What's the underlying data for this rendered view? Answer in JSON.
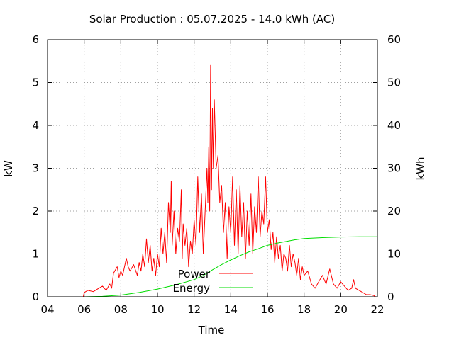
{
  "chart_data": {
    "type": "line",
    "title": "Solar Production : 05.07.2025 - 14.0 kWh (AC)",
    "xlabel": "Time",
    "ylabel": "kW",
    "y2label": "kWh",
    "xlim": [
      4,
      22
    ],
    "ylim": [
      0,
      6
    ],
    "y2lim": [
      0,
      60
    ],
    "x_ticks": [
      "04",
      "06",
      "08",
      "10",
      "12",
      "14",
      "16",
      "18",
      "20",
      "22"
    ],
    "y_ticks": [
      "0",
      "1",
      "2",
      "3",
      "4",
      "5",
      "6"
    ],
    "y2_ticks": [
      "0",
      "10",
      "20",
      "30",
      "40",
      "50",
      "60"
    ],
    "grid": true,
    "legend_position": "bottom-center",
    "colors": {
      "power": "#ff0000",
      "energy": "#00dd00",
      "axes": "#000000",
      "grid": "#a0a0a0"
    },
    "series": [
      {
        "name": "Power",
        "axis": "left",
        "x": [
          5.95,
          6.0,
          6.2,
          6.5,
          6.8,
          7.0,
          7.2,
          7.4,
          7.5,
          7.6,
          7.8,
          7.9,
          8.0,
          8.1,
          8.3,
          8.4,
          8.5,
          8.7,
          8.9,
          9.0,
          9.1,
          9.2,
          9.3,
          9.4,
          9.5,
          9.6,
          9.7,
          9.8,
          9.9,
          10.0,
          10.1,
          10.2,
          10.3,
          10.4,
          10.5,
          10.6,
          10.7,
          10.75,
          10.8,
          10.9,
          11.0,
          11.1,
          11.2,
          11.3,
          11.35,
          11.4,
          11.5,
          11.6,
          11.7,
          11.8,
          11.9,
          12.0,
          12.1,
          12.2,
          12.3,
          12.4,
          12.5,
          12.6,
          12.7,
          12.75,
          12.8,
          12.85,
          12.9,
          12.95,
          13.0,
          13.05,
          13.1,
          13.2,
          13.3,
          13.4,
          13.5,
          13.6,
          13.7,
          13.8,
          13.9,
          14.0,
          14.1,
          14.2,
          14.3,
          14.4,
          14.5,
          14.6,
          14.7,
          14.8,
          14.9,
          15.0,
          15.1,
          15.2,
          15.3,
          15.4,
          15.5,
          15.6,
          15.7,
          15.8,
          15.9,
          16.0,
          16.1,
          16.2,
          16.3,
          16.4,
          16.5,
          16.6,
          16.7,
          16.8,
          16.9,
          17.0,
          17.1,
          17.2,
          17.3,
          17.4,
          17.5,
          17.6,
          17.7,
          17.8,
          17.9,
          18.0,
          18.2,
          18.4,
          18.6,
          18.8,
          19.0,
          19.2,
          19.4,
          19.6,
          19.8,
          20.0,
          20.2,
          20.4,
          20.6,
          20.7,
          20.8,
          21.0,
          21.2,
          21.4,
          21.6,
          21.8,
          21.9
        ],
        "values": [
          0.0,
          0.1,
          0.15,
          0.12,
          0.2,
          0.25,
          0.15,
          0.3,
          0.2,
          0.55,
          0.7,
          0.45,
          0.6,
          0.5,
          0.9,
          0.7,
          0.6,
          0.75,
          0.5,
          0.8,
          0.6,
          1.0,
          0.7,
          1.35,
          0.8,
          1.2,
          0.6,
          0.9,
          0.5,
          1.0,
          0.7,
          1.6,
          1.0,
          1.5,
          0.8,
          2.2,
          1.5,
          2.7,
          1.2,
          2.0,
          1.0,
          1.6,
          1.3,
          2.5,
          0.9,
          1.7,
          1.2,
          1.6,
          0.7,
          1.3,
          1.0,
          1.8,
          1.2,
          2.8,
          1.5,
          2.4,
          1.0,
          2.0,
          3.0,
          2.2,
          3.5,
          2.0,
          5.4,
          2.5,
          4.4,
          3.0,
          4.6,
          3.0,
          3.3,
          2.2,
          2.6,
          1.5,
          2.2,
          0.9,
          2.1,
          1.5,
          2.8,
          1.2,
          2.5,
          1.0,
          2.6,
          1.4,
          2.2,
          0.9,
          2.0,
          1.2,
          2.4,
          1.0,
          2.1,
          1.5,
          2.8,
          1.4,
          2.0,
          1.7,
          2.8,
          1.5,
          1.8,
          1.1,
          1.5,
          0.8,
          1.4,
          0.9,
          1.2,
          0.6,
          1.0,
          0.9,
          0.6,
          1.2,
          0.7,
          1.0,
          0.8,
          0.5,
          0.9,
          0.4,
          0.7,
          0.5,
          0.6,
          0.3,
          0.2,
          0.35,
          0.5,
          0.3,
          0.65,
          0.3,
          0.2,
          0.35,
          0.25,
          0.15,
          0.2,
          0.4,
          0.2,
          0.15,
          0.1,
          0.05,
          0.05,
          0.03,
          0.0
        ]
      },
      {
        "name": "Energy",
        "axis": "right",
        "x": [
          6.0,
          7.0,
          8.0,
          9.0,
          10.0,
          11.0,
          12.0,
          12.5,
          13.0,
          13.5,
          14.0,
          14.5,
          15.0,
          15.5,
          16.0,
          16.5,
          17.0,
          17.5,
          18.0,
          19.0,
          20.0,
          21.0,
          22.0
        ],
        "values": [
          0.0,
          0.1,
          0.4,
          1.0,
          1.8,
          2.8,
          4.0,
          5.0,
          6.3,
          7.5,
          8.6,
          9.6,
          10.5,
          11.2,
          12.0,
          12.5,
          12.9,
          13.3,
          13.6,
          13.8,
          13.95,
          14.0,
          14.0
        ]
      }
    ]
  }
}
